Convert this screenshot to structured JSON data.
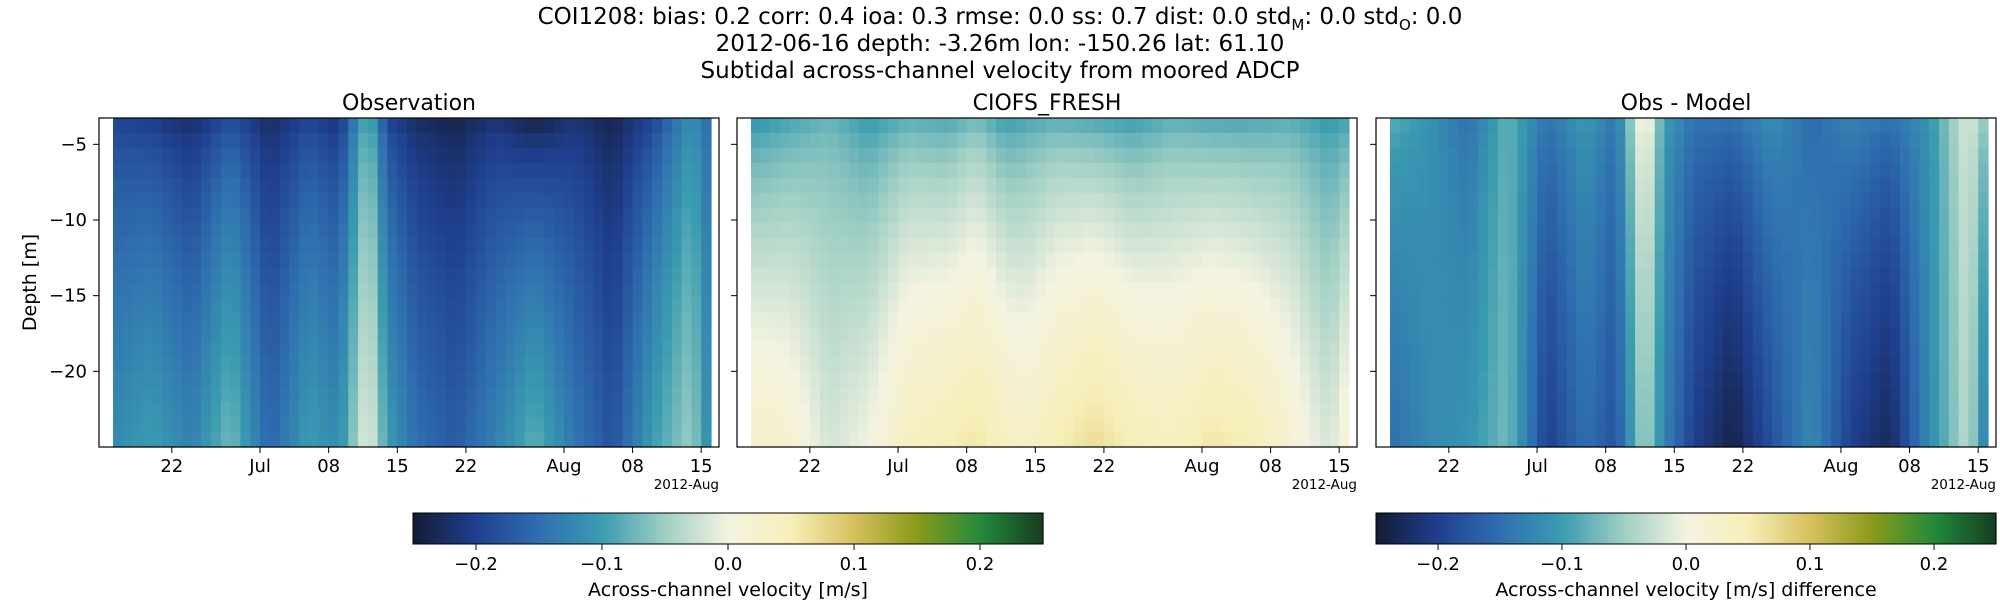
{
  "header": {
    "line1": "COI1208: bias: 0.2  corr: 0.4  ioa: 0.3  rmse: 0.0  ss: 0.7  dist: 0.0  std_M: 0.0  std_O: 0.0",
    "line2": "2012-06-16 depth: -3.26m lon: -150.26 lat: 61.10",
    "line3": "Subtidal across-channel velocity from moored ADCP"
  },
  "colormap": [
    "#141b33",
    "#1f3f8f",
    "#2f6fb0",
    "#3a9cb0",
    "#9fcfc4",
    "#f4f3e0",
    "#f7efb8",
    "#d6c15e",
    "#8a9a19",
    "#238a3b",
    "#163d22"
  ],
  "chart_data": [
    {
      "type": "heatmap",
      "title": "Observation",
      "ylabel": "Depth [m]",
      "xlabel": "",
      "x_tick_labels": [
        "22",
        "Jul",
        "08",
        "15",
        "22",
        "Aug",
        "08",
        "15"
      ],
      "x_offset_label": "2012-Aug",
      "x_range": [
        "2012-06-16",
        "2012-08-16"
      ],
      "y_ticks": [
        -5,
        -10,
        -15,
        -20
      ],
      "y_range": [
        -25,
        -3.26
      ],
      "color_range": [
        -0.25,
        0.25
      ],
      "time_profile": [
        "2012-06-16",
        "2012-06-20",
        "2012-06-24",
        "2012-06-28",
        "2012-07-02",
        "2012-07-06",
        "2012-07-09",
        "2012-07-12",
        "2012-07-14",
        "2012-07-17",
        "2012-07-21",
        "2012-07-25",
        "2012-07-29",
        "2012-08-02",
        "2012-08-06",
        "2012-08-10",
        "2012-08-14",
        "2012-08-16"
      ],
      "surface_velocity": [
        -0.2,
        -0.21,
        -0.23,
        -0.19,
        -0.23,
        -0.2,
        -0.22,
        -0.08,
        -0.2,
        -0.23,
        -0.24,
        -0.22,
        -0.25,
        -0.22,
        -0.24,
        -0.2,
        -0.12,
        -0.16
      ],
      "bottom_velocity": [
        -0.12,
        -0.1,
        -0.13,
        -0.07,
        -0.16,
        -0.1,
        -0.12,
        0.0,
        -0.1,
        -0.15,
        -0.17,
        -0.13,
        -0.08,
        -0.14,
        -0.18,
        -0.1,
        -0.05,
        -0.13
      ]
    },
    {
      "type": "heatmap",
      "title": "CIOFS_FRESH",
      "x_tick_labels": [
        "22",
        "Jul",
        "08",
        "15",
        "22",
        "Aug",
        "08",
        "15"
      ],
      "x_offset_label": "2012-Aug",
      "x_range": [
        "2012-06-16",
        "2012-08-16"
      ],
      "y_range": [
        -25,
        -3.26
      ],
      "color_range": [
        -0.25,
        0.25
      ],
      "time_profile": [
        "2012-06-16",
        "2012-06-20",
        "2012-06-24",
        "2012-06-28",
        "2012-07-02",
        "2012-07-06",
        "2012-07-09",
        "2012-07-12",
        "2012-07-14",
        "2012-07-17",
        "2012-07-21",
        "2012-07-25",
        "2012-07-29",
        "2012-08-02",
        "2012-08-06",
        "2012-08-10",
        "2012-08-14",
        "2012-08-16"
      ],
      "surface_velocity": [
        -0.12,
        -0.1,
        -0.08,
        -0.11,
        -0.09,
        -0.1,
        -0.08,
        -0.11,
        -0.1,
        -0.09,
        -0.1,
        -0.11,
        -0.09,
        -0.1,
        -0.1,
        -0.09,
        -0.11,
        -0.1
      ],
      "bottom_velocity": [
        0.03,
        0.02,
        -0.02,
        0.0,
        0.04,
        0.05,
        0.06,
        0.04,
        0.03,
        0.05,
        0.07,
        0.05,
        0.04,
        0.06,
        0.05,
        0.02,
        -0.02,
        0.02
      ]
    },
    {
      "type": "heatmap",
      "title": "Obs - Model",
      "x_tick_labels": [
        "22",
        "Jul",
        "08",
        "15",
        "22",
        "Aug",
        "08",
        "15"
      ],
      "x_offset_label": "2012-Aug",
      "x_range": [
        "2012-06-16",
        "2012-08-16"
      ],
      "y_range": [
        -25,
        -3.26
      ],
      "color_range": [
        -0.25,
        0.25
      ],
      "time_profile": [
        "2012-06-16",
        "2012-06-20",
        "2012-06-24",
        "2012-06-28",
        "2012-07-02",
        "2012-07-06",
        "2012-07-09",
        "2012-07-12",
        "2012-07-14",
        "2012-07-17",
        "2012-07-21",
        "2012-07-25",
        "2012-07-29",
        "2012-08-02",
        "2012-08-06",
        "2012-08-10",
        "2012-08-14",
        "2012-08-16"
      ],
      "surface_velocity": [
        -0.08,
        -0.11,
        -0.15,
        -0.08,
        -0.14,
        -0.1,
        -0.14,
        0.03,
        -0.1,
        -0.14,
        -0.14,
        -0.11,
        -0.16,
        -0.12,
        -0.14,
        -0.11,
        -0.01,
        -0.06
      ],
      "bottom_velocity": [
        -0.15,
        -0.12,
        -0.11,
        -0.07,
        -0.2,
        -0.15,
        -0.18,
        -0.04,
        -0.13,
        -0.2,
        -0.24,
        -0.18,
        -0.12,
        -0.2,
        -0.23,
        -0.12,
        -0.03,
        -0.15
      ]
    }
  ],
  "colorbars": [
    {
      "label": "Across-channel velocity [m/s]",
      "ticks": [
        -0.2,
        -0.1,
        0.0,
        0.1,
        0.2
      ],
      "tick_labels": [
        "−0.2",
        "−0.1",
        "0.0",
        "0.1",
        "0.2"
      ],
      "range": [
        -0.25,
        0.25
      ]
    },
    {
      "label": "Across-channel velocity [m/s] difference",
      "ticks": [
        -0.2,
        -0.1,
        0.0,
        0.1,
        0.2
      ],
      "tick_labels": [
        "−0.2",
        "−0.1",
        "0.0",
        "0.1",
        "0.2"
      ],
      "range": [
        -0.25,
        0.25
      ]
    }
  ],
  "y_tick_labels": [
    "−5",
    "−10",
    "−15",
    "−20"
  ]
}
